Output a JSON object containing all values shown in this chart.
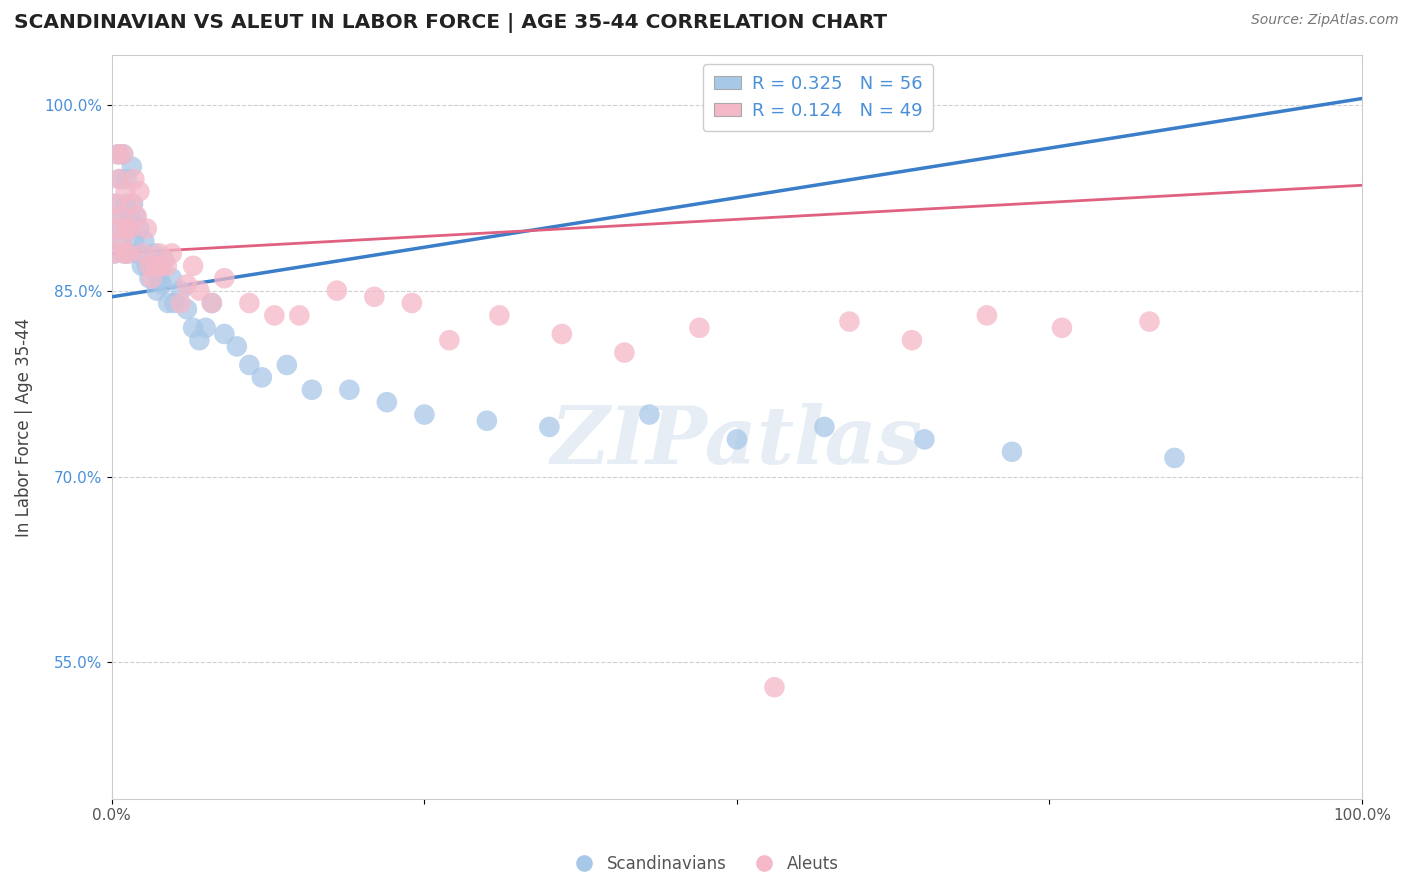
{
  "title": "SCANDINAVIAN VS ALEUT IN LABOR FORCE | AGE 35-44 CORRELATION CHART",
  "source": "Source: ZipAtlas.com",
  "xlabel": "",
  "ylabel": "In Labor Force | Age 35-44",
  "xlim": [
    0.0,
    1.0
  ],
  "ylim": [
    0.44,
    1.04
  ],
  "xtick_positions": [
    0.0,
    0.25,
    0.5,
    0.75,
    1.0
  ],
  "xticklabels": [
    "0.0%",
    "",
    "",
    "",
    "100.0%"
  ],
  "ytick_positions": [
    0.55,
    0.7,
    0.85,
    1.0
  ],
  "yticklabels": [
    "55.0%",
    "70.0%",
    "85.0%",
    "100.0%"
  ],
  "blue_color": "#A8C8E8",
  "pink_color": "#F4B8C8",
  "blue_line_color": "#3A7DC9",
  "pink_line_color": "#E06080",
  "legend_color_text": "#4A90D9",
  "legend_R_blue": "R = 0.325",
  "legend_N_blue": "N = 56",
  "legend_R_pink": "R = 0.124",
  "legend_N_pink": "N = 49",
  "watermark_text": "ZIPatlas",
  "background_color": "#FFFFFF",
  "grid_color": "#CCCCCC",
  "legend_label_scandinavians": "Scandinavians",
  "legend_label_aleuts": "Aleuts",
  "blue_trend_x0": 0.0,
  "blue_trend_y0": 0.845,
  "blue_trend_x1": 1.0,
  "blue_trend_y1": 1.005,
  "pink_trend_x0": 0.0,
  "pink_trend_y0": 0.88,
  "pink_trend_x1": 1.0,
  "pink_trend_y1": 0.935,
  "blue_points_x": [
    0.002,
    0.003,
    0.004,
    0.005,
    0.006,
    0.007,
    0.008,
    0.009,
    0.01,
    0.011,
    0.012,
    0.013,
    0.014,
    0.015,
    0.016,
    0.017,
    0.018,
    0.019,
    0.02,
    0.022,
    0.024,
    0.026,
    0.028,
    0.03,
    0.032,
    0.034,
    0.036,
    0.038,
    0.04,
    0.042,
    0.045,
    0.048,
    0.05,
    0.055,
    0.06,
    0.065,
    0.07,
    0.075,
    0.08,
    0.09,
    0.1,
    0.11,
    0.12,
    0.14,
    0.16,
    0.19,
    0.22,
    0.25,
    0.3,
    0.35,
    0.43,
    0.5,
    0.57,
    0.65,
    0.72,
    0.85
  ],
  "blue_points_y": [
    0.88,
    0.92,
    0.9,
    0.96,
    0.94,
    0.91,
    0.89,
    0.96,
    0.88,
    0.92,
    0.94,
    0.88,
    0.91,
    0.9,
    0.95,
    0.92,
    0.89,
    0.91,
    0.88,
    0.9,
    0.87,
    0.89,
    0.87,
    0.86,
    0.87,
    0.88,
    0.85,
    0.86,
    0.855,
    0.875,
    0.84,
    0.86,
    0.84,
    0.85,
    0.835,
    0.82,
    0.81,
    0.82,
    0.84,
    0.815,
    0.805,
    0.79,
    0.78,
    0.79,
    0.77,
    0.77,
    0.76,
    0.75,
    0.745,
    0.74,
    0.75,
    0.73,
    0.74,
    0.73,
    0.72,
    0.715
  ],
  "pink_points_x": [
    0.002,
    0.003,
    0.004,
    0.005,
    0.006,
    0.007,
    0.008,
    0.009,
    0.01,
    0.011,
    0.012,
    0.013,
    0.015,
    0.016,
    0.018,
    0.02,
    0.022,
    0.025,
    0.028,
    0.03,
    0.032,
    0.035,
    0.038,
    0.04,
    0.044,
    0.048,
    0.055,
    0.06,
    0.065,
    0.07,
    0.08,
    0.09,
    0.11,
    0.13,
    0.15,
    0.18,
    0.21,
    0.24,
    0.27,
    0.31,
    0.36,
    0.41,
    0.47,
    0.53,
    0.59,
    0.64,
    0.7,
    0.76,
    0.83
  ],
  "pink_points_y": [
    0.88,
    0.92,
    0.9,
    0.96,
    0.94,
    0.91,
    0.89,
    0.96,
    0.88,
    0.93,
    0.9,
    0.88,
    0.9,
    0.92,
    0.94,
    0.91,
    0.93,
    0.88,
    0.9,
    0.87,
    0.86,
    0.87,
    0.88,
    0.87,
    0.87,
    0.88,
    0.84,
    0.855,
    0.87,
    0.85,
    0.84,
    0.86,
    0.84,
    0.83,
    0.83,
    0.85,
    0.845,
    0.84,
    0.81,
    0.83,
    0.815,
    0.8,
    0.82,
    0.53,
    0.825,
    0.81,
    0.83,
    0.82,
    0.825
  ]
}
